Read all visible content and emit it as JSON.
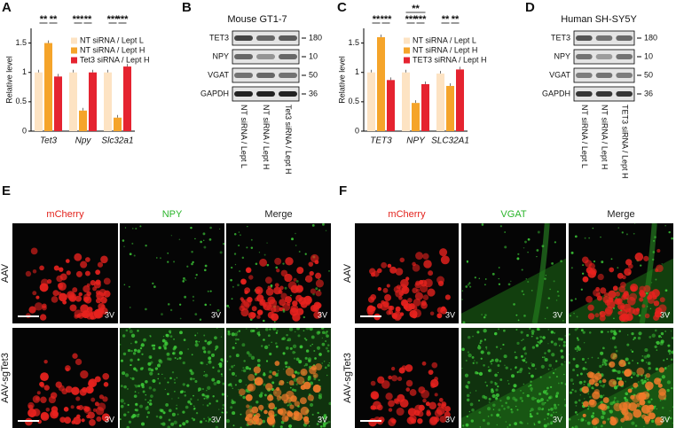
{
  "panel_labels": [
    "A",
    "B",
    "C",
    "D",
    "E",
    "F"
  ],
  "chart_data": [
    {
      "type": "bar",
      "ylabel": "Relative level",
      "categories": [
        "Tet3",
        "Npy",
        "Slc32a1"
      ],
      "series": [
        {
          "name": "NT siRNA / Lept L",
          "color": "#fde3c3",
          "values": [
            1.0,
            1.0,
            1.0
          ]
        },
        {
          "name": "NT siRNA / Lept H",
          "color": "#f5a42a",
          "values": [
            1.5,
            0.35,
            0.23
          ]
        },
        {
          "name": "Tet3 siRNA / Lept H",
          "color": "#e52330",
          "values": [
            0.93,
            1.0,
            1.1
          ]
        }
      ],
      "ylim": [
        0,
        1.75
      ],
      "yticks": [
        0,
        0.5,
        1,
        1.5
      ],
      "significance": [
        [
          "**",
          "**"
        ],
        [
          "***",
          "**"
        ],
        [
          "***",
          "***"
        ]
      ]
    },
    {
      "type": "bar",
      "ylabel": "Relative level",
      "categories": [
        "TET3",
        "NPY",
        "SLC32A1"
      ],
      "series": [
        {
          "name": "NT siRNA / Lept L",
          "color": "#fde3c3",
          "values": [
            1.0,
            1.0,
            0.98
          ]
        },
        {
          "name": "NT siRNA / Lept H",
          "color": "#f5a42a",
          "values": [
            1.6,
            0.48,
            0.77
          ]
        },
        {
          "name": "TET3 siRNA / Lept H",
          "color": "#e52330",
          "values": [
            0.87,
            0.8,
            1.05
          ]
        }
      ],
      "ylim": [
        0,
        1.75
      ],
      "yticks": [
        0,
        0.5,
        1,
        1.5
      ],
      "significance": [
        [
          "**",
          "***"
        ],
        [
          "***",
          "***",
          "**"
        ],
        [
          "**",
          "**"
        ]
      ]
    }
  ],
  "blots": [
    {
      "title": "Mouse GT1-7",
      "rows": [
        {
          "label": "TET3",
          "size": 180
        },
        {
          "label": "NPY",
          "size": 10
        },
        {
          "label": "VGAT",
          "size": 50
        },
        {
          "label": "GAPDH",
          "size": 36
        }
      ],
      "lanes": [
        "NT siRNA / Lept L",
        "NT siRNA / Lept H",
        "Tet3 siRNA / Lept H"
      ]
    },
    {
      "title": "Human SH-SY5Y",
      "rows": [
        {
          "label": "TET3",
          "size": 180
        },
        {
          "label": "NPY",
          "size": 10
        },
        {
          "label": "VGAT",
          "size": 50
        },
        {
          "label": "GAPDH",
          "size": 36
        }
      ],
      "lanes": [
        "NT siRNA / Lept L",
        "NT siRNA / Lept H",
        "TET3 siRNA / Lept H"
      ]
    }
  ],
  "images": [
    {
      "channels": [
        "mCherry",
        "NPY",
        "Merge"
      ],
      "rows": [
        "AAV",
        "AAV-sgTet3"
      ],
      "marker": "3V"
    },
    {
      "channels": [
        "mCherry",
        "VGAT",
        "Merge"
      ],
      "rows": [
        "AAV",
        "AAV-sgTet3"
      ],
      "marker": "3V"
    }
  ]
}
